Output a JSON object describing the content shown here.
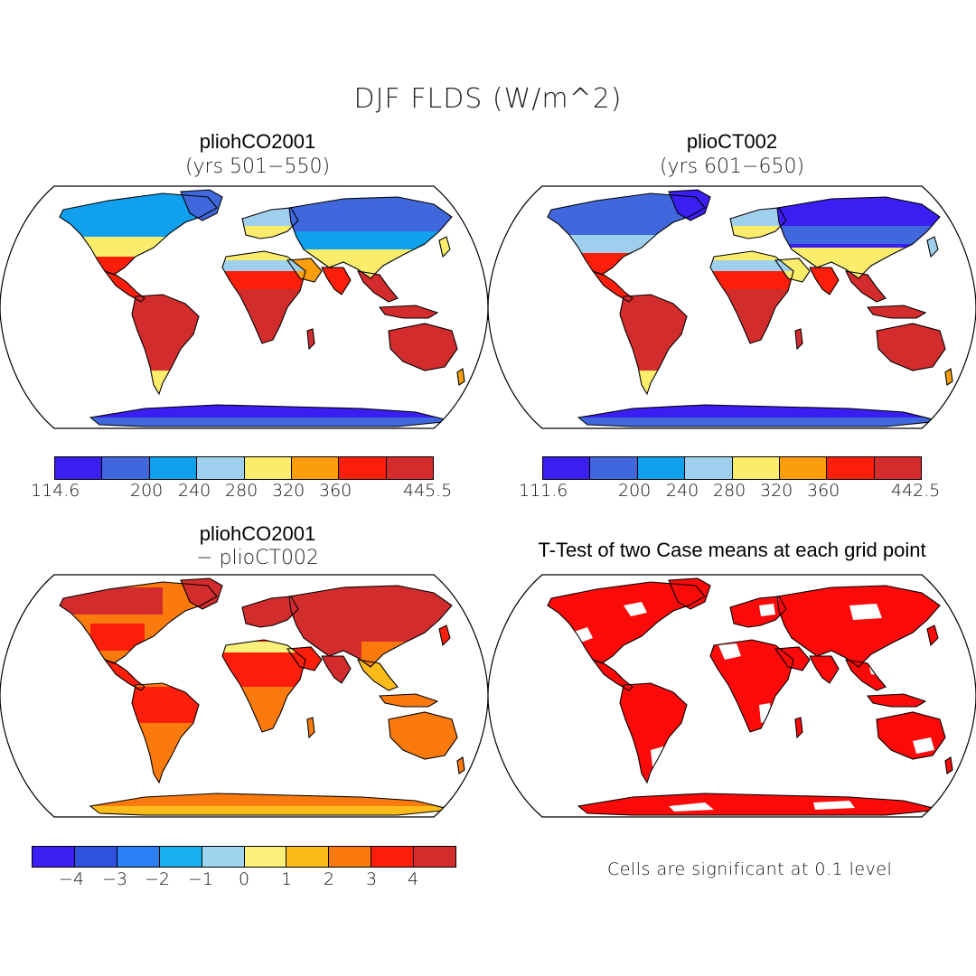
{
  "title": "DJF FLDS (W/m^2)",
  "panels": [
    {
      "id": "p1",
      "title": "pliohCO2001",
      "subtitle": "(yrs 501−550)"
    },
    {
      "id": "p2",
      "title": "plioCT002",
      "subtitle": "(yrs 601−650)"
    },
    {
      "id": "p3",
      "title": "pliohCO2001",
      "subtitle": "− plioCT002"
    },
    {
      "id": "p4",
      "title": "T-Test of two Case means at each grid point",
      "subtitle": ""
    }
  ],
  "colorbars": {
    "cb1": {
      "colors": [
        "#3a1ef2",
        "#4068dc",
        "#11a0ee",
        "#9ed0ee",
        "#fbec6c",
        "#fb9e0e",
        "#fb1e0a",
        "#d22c2c"
      ],
      "labels": [
        "114.6",
        "200",
        "240",
        "280",
        "320",
        "360",
        "445.5"
      ]
    },
    "cb2": {
      "colors": [
        "#3a1ef2",
        "#4068dc",
        "#11a0ee",
        "#9ed0ee",
        "#fbec6c",
        "#fb9e0e",
        "#fb1e0a",
        "#d22c2c"
      ],
      "labels": [
        "111.6",
        "200",
        "240",
        "280",
        "320",
        "360",
        "442.5"
      ]
    },
    "cb3": {
      "colors": [
        "#3a1ef2",
        "#3050e0",
        "#2a80f4",
        "#18b0f2",
        "#9ed4ee",
        "#fbf07a",
        "#fbbc1a",
        "#fb7a0e",
        "#fb1e0a",
        "#d22c2c"
      ],
      "labels": [
        "−4",
        "−3",
        "−2",
        "−1",
        "0",
        "1",
        "2",
        "3",
        "4"
      ]
    }
  },
  "significance_note": "Cells are significant at 0.1 level",
  "map_colors": {
    "ocean": "#ffffff",
    "coast": "#000000",
    "significant": "#fb0a0a"
  }
}
